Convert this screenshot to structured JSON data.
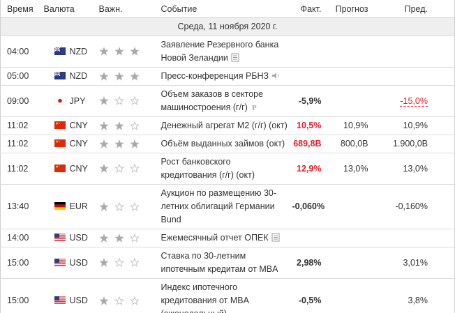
{
  "header": {
    "columns": [
      "Время",
      "Валюта",
      "Важн.",
      "Событие",
      "Факт.",
      "Прогноз",
      "Пред."
    ]
  },
  "date": "Среда, 11 ноября 2020 г.",
  "rows": [
    {
      "time": "04:00",
      "currency": "NZD",
      "importance": 3,
      "event": "Заявление Резервного банка Новой Зеландии"
    },
    {
      "time": "05:00",
      "currency": "NZD",
      "importance": 3,
      "event": "Пресс-конференция РБНЗ"
    },
    {
      "time": "09:00",
      "currency": "JPY",
      "importance": 1,
      "event": "Объем заказов в секторе машиностроения (г/г)",
      "actual": "-5,9%",
      "previous": "-15,0%",
      "previous_color": "#e0202a"
    },
    {
      "time": "11:02",
      "currency": "CNY",
      "importance": 2,
      "event": "Денежный агрегат М2 (г/г) (окт)",
      "actual": "10,5%",
      "actual_color": "#e0202a",
      "forecast": "10,9%",
      "previous": "10,9%"
    },
    {
      "time": "11:02",
      "currency": "CNY",
      "importance": 3,
      "event": "Объём выданных займов (окт)",
      "actual": "689,8B",
      "actual_color": "#e0202a",
      "forecast": "800,0B",
      "previous": "1.900,0B"
    },
    {
      "time": "11:02",
      "currency": "CNY",
      "importance": 1,
      "event": "Рост банковского кредитования (г/г) (окт)",
      "actual": "12,9%",
      "actual_color": "#e0202a",
      "forecast": "13,0%",
      "previous": "13,0%"
    },
    {
      "time": "13:40",
      "currency": "EUR",
      "importance": 1,
      "event": "Аукцион по размещению 30-летних облигаций Германии Bund",
      "actual": "-0,060%",
      "previous": "-0,160%"
    },
    {
      "time": "14:00",
      "currency": "USD",
      "importance": 2,
      "event": "Ежемесячный отчет ОПЕК"
    },
    {
      "time": "15:00",
      "currency": "USD",
      "importance": 1,
      "event": "Ставка по 30-летним ипотечным кредитам от MBA",
      "actual": "2,98%",
      "previous": "3,01%"
    },
    {
      "time": "15:00",
      "currency": "USD",
      "importance": 1,
      "event": "Индекс ипотечного кредитования от MBA (еженедельный)",
      "actual": "-0,5%",
      "previous": "3,8%"
    }
  ]
}
